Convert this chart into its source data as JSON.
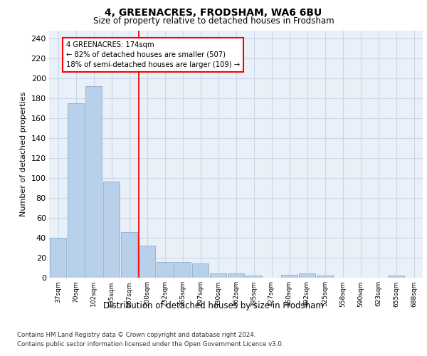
{
  "title": "4, GREENACRES, FRODSHAM, WA6 6BU",
  "subtitle": "Size of property relative to detached houses in Frodsham",
  "xlabel": "Distribution of detached houses by size in Frodsham",
  "ylabel": "Number of detached properties",
  "bar_labels": [
    "37sqm",
    "70sqm",
    "102sqm",
    "135sqm",
    "167sqm",
    "200sqm",
    "232sqm",
    "265sqm",
    "297sqm",
    "330sqm",
    "362sqm",
    "395sqm",
    "427sqm",
    "460sqm",
    "492sqm",
    "525sqm",
    "558sqm",
    "590sqm",
    "623sqm",
    "655sqm",
    "688sqm"
  ],
  "bar_values": [
    40,
    175,
    192,
    96,
    46,
    32,
    16,
    16,
    14,
    4,
    4,
    2,
    0,
    3,
    4,
    2,
    0,
    0,
    0,
    2,
    0
  ],
  "bar_color": "#b8d0ea",
  "bar_edgecolor": "#8ab0d0",
  "grid_color": "#c8d8e8",
  "background_color": "#eaf0f8",
  "red_line_x": 4.55,
  "annotation_text": "4 GREENACRES: 174sqm\n← 82% of detached houses are smaller (507)\n18% of semi-detached houses are larger (109) →",
  "ylim": [
    0,
    248
  ],
  "yticks": [
    0,
    20,
    40,
    60,
    80,
    100,
    120,
    140,
    160,
    180,
    200,
    220,
    240
  ],
  "footer_line1": "Contains HM Land Registry data © Crown copyright and database right 2024.",
  "footer_line2": "Contains public sector information licensed under the Open Government Licence v3.0."
}
